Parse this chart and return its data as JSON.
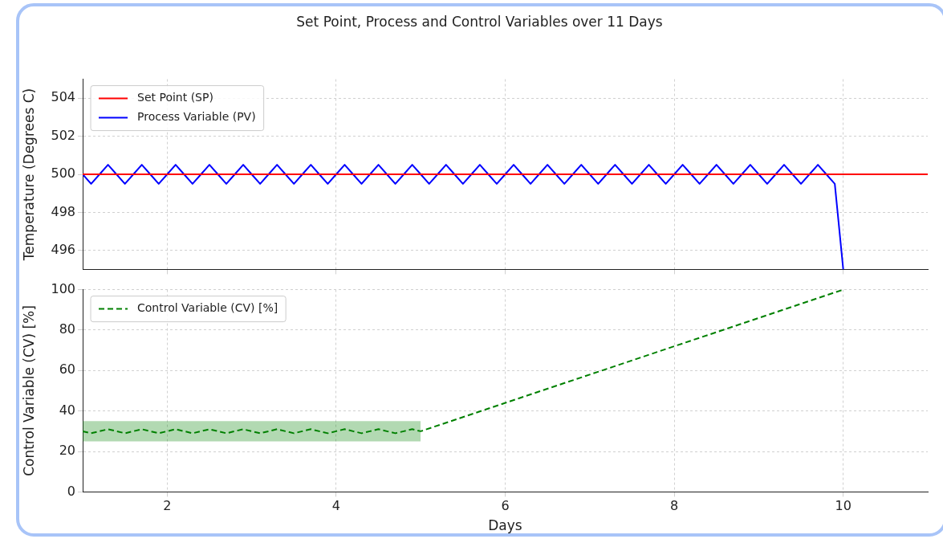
{
  "chart_data": [
    {
      "type": "line",
      "title": "Set Point, Process and Control Variables over 11 Days",
      "ylabel": "Temperature (Degrees C)",
      "xlim": [
        1,
        11
      ],
      "xticks": [
        2,
        4,
        6,
        8,
        10
      ],
      "ylim": [
        495,
        505
      ],
      "yticks": [
        496,
        498,
        500,
        502,
        504
      ],
      "grid": true,
      "legend": "top left",
      "tick_labels": "y",
      "line_style": "solid",
      "marker": "none",
      "series": [
        {
          "name": "Set Point (SP)",
          "color": "#ff0000",
          "x": [
            1,
            11
          ],
          "values": [
            500,
            500
          ]
        },
        {
          "name": "Process Variable (PV)",
          "color": "#0000ff",
          "x": [
            1.0,
            1.1,
            1.2,
            1.3,
            1.4,
            1.5,
            1.6,
            1.7,
            1.8,
            1.9,
            2.0,
            2.1,
            2.2,
            2.3,
            2.4,
            2.5,
            2.6,
            2.7,
            2.8,
            2.9,
            3.0,
            3.1,
            3.2,
            3.3,
            3.4,
            3.5,
            3.6,
            3.7,
            3.8,
            3.9,
            4.0,
            4.1,
            4.2,
            4.3,
            4.4,
            4.5,
            4.6,
            4.7,
            4.8,
            4.9,
            5.0,
            5.1,
            5.2,
            5.3,
            5.4,
            5.5,
            5.6,
            5.7,
            5.8,
            5.9,
            6.0,
            6.1,
            6.2,
            6.3,
            6.4,
            6.5,
            6.6,
            6.7,
            6.8,
            6.9,
            7.0,
            7.1,
            7.2,
            7.3,
            7.4,
            7.5,
            7.6,
            7.7,
            7.8,
            7.9,
            8.0,
            8.1,
            8.2,
            8.3,
            8.4,
            8.5,
            8.6,
            8.7,
            8.8,
            8.9,
            9.0,
            9.1,
            9.2,
            9.3,
            9.4,
            9.5,
            9.6,
            9.7,
            9.8,
            9.9,
            10
          ],
          "values": [
            500,
            499.5,
            500,
            500.5,
            500,
            499.5,
            500,
            500.5,
            500,
            499.5,
            500,
            500.5,
            500,
            499.5,
            500,
            500.5,
            500,
            499.5,
            500,
            500.5,
            500,
            499.5,
            500,
            500.5,
            500,
            499.5,
            500,
            500.5,
            500,
            499.5,
            500,
            500.5,
            500,
            499.5,
            500,
            500.5,
            500,
            499.5,
            500,
            500.5,
            500,
            499.5,
            500,
            500.5,
            500,
            499.5,
            500,
            500.5,
            500,
            499.5,
            500,
            500.5,
            500,
            499.5,
            500,
            500.5,
            500,
            499.5,
            500,
            500.5,
            500,
            499.5,
            500,
            500.5,
            500,
            499.5,
            500,
            500.5,
            500,
            499.5,
            500,
            500.5,
            500,
            499.5,
            500,
            500.5,
            500,
            499.5,
            500,
            500.5,
            500,
            499.5,
            500,
            500.5,
            500,
            499.5,
            500,
            500.5,
            500,
            499.5,
            495
          ]
        }
      ]
    },
    {
      "type": "line",
      "xlabel": "Days",
      "ylabel": "Control Variable (CV) [%]",
      "xlim": [
        1,
        11
      ],
      "xticks": [
        2,
        4,
        6,
        8,
        10
      ],
      "ylim": [
        0,
        100
      ],
      "yticks": [
        0,
        20,
        40,
        60,
        80,
        100
      ],
      "grid": true,
      "legend": "top left",
      "line_style": "dashed",
      "marker": "none",
      "series": [
        {
          "name": "Control Variable (CV) [%]",
          "color": "#008000",
          "x": [
            1.0,
            1.1,
            1.2,
            1.3,
            1.4,
            1.5,
            1.6,
            1.7,
            1.8,
            1.9,
            2.0,
            2.1,
            2.2,
            2.3,
            2.4,
            2.5,
            2.6,
            2.7,
            2.8,
            2.9,
            3.0,
            3.1,
            3.2,
            3.3,
            3.4,
            3.5,
            3.6,
            3.7,
            3.8,
            3.9,
            4.0,
            4.1,
            4.2,
            4.3,
            4.4,
            4.5,
            4.6,
            4.7,
            4.8,
            4.9,
            5.0,
            10
          ],
          "values": [
            30,
            29,
            30,
            31,
            30,
            29,
            30,
            31,
            30,
            29,
            30,
            31,
            30,
            29,
            30,
            31,
            30,
            29,
            30,
            31,
            30,
            29,
            30,
            31,
            30,
            29,
            30,
            31,
            30,
            29,
            30,
            31,
            30,
            29,
            30,
            31,
            30,
            29,
            30,
            31,
            30,
            100
          ],
          "lower": [
            25,
            25,
            25,
            25,
            25,
            25,
            25,
            25,
            25,
            25,
            25,
            25,
            25,
            25,
            25,
            25,
            25,
            25,
            25,
            25,
            25,
            25,
            25,
            25,
            25,
            25,
            25,
            25,
            25,
            25,
            25,
            25,
            25,
            25,
            25,
            25,
            25,
            25,
            25,
            25,
            25,
            null
          ],
          "upper": [
            35,
            35,
            35,
            35,
            35,
            35,
            35,
            35,
            35,
            35,
            35,
            35,
            35,
            35,
            35,
            35,
            35,
            35,
            35,
            35,
            35,
            35,
            35,
            35,
            35,
            35,
            35,
            35,
            35,
            35,
            35,
            35,
            35,
            35,
            35,
            35,
            35,
            35,
            35,
            35,
            35,
            null
          ]
        }
      ]
    }
  ]
}
